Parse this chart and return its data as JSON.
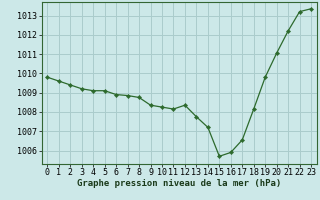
{
  "x": [
    0,
    1,
    2,
    3,
    4,
    5,
    6,
    7,
    8,
    9,
    10,
    11,
    12,
    13,
    14,
    15,
    16,
    17,
    18,
    19,
    20,
    21,
    22,
    23
  ],
  "y": [
    1009.8,
    1009.6,
    1009.4,
    1009.2,
    1009.1,
    1009.1,
    1008.9,
    1008.85,
    1008.75,
    1008.35,
    1008.25,
    1008.15,
    1008.35,
    1007.75,
    1007.2,
    1005.7,
    1005.9,
    1006.55,
    1008.15,
    1009.8,
    1011.05,
    1012.2,
    1013.2,
    1013.35
  ],
  "line_color": "#2d6a2d",
  "marker_color": "#2d6a2d",
  "bg_color": "#cce8e8",
  "grid_color": "#aacccc",
  "ylabel_ticks": [
    1006,
    1007,
    1008,
    1009,
    1010,
    1011,
    1012,
    1013
  ],
  "xlabel_label": "Graphe pression niveau de la mer (hPa)",
  "ylim": [
    1005.3,
    1013.7
  ],
  "xlim": [
    -0.5,
    23.5
  ],
  "label_fontsize": 6.5,
  "tick_fontsize": 6.0
}
